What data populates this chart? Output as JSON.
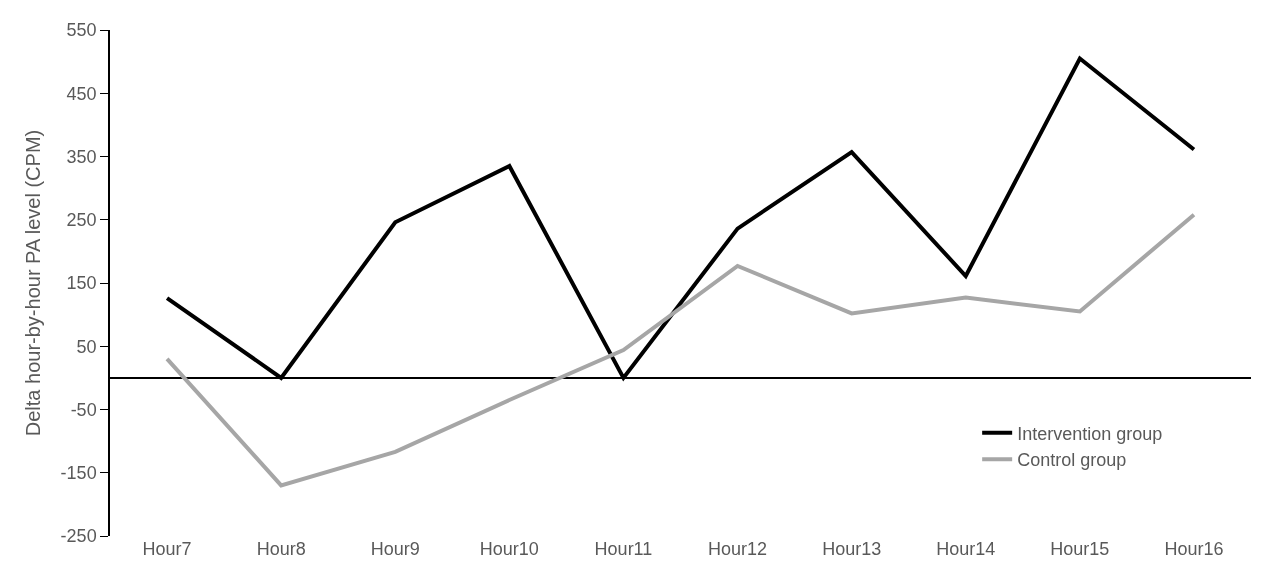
{
  "chart_data": {
    "type": "line",
    "ylabel": "Delta hour-by-hour PA level (CPM)",
    "categories": [
      "Hour7",
      "Hour8",
      "Hour9",
      "Hour10",
      "Hour11",
      "Hour12",
      "Hour13",
      "Hour14",
      "Hour15",
      "Hour16"
    ],
    "series": [
      {
        "name": "Intervention group",
        "color": "#000000",
        "values": [
          126,
          0,
          246,
          335,
          0,
          236,
          357,
          161,
          505,
          361
        ]
      },
      {
        "name": "Control group",
        "color": "#a6a6a6",
        "values": [
          30,
          -170,
          -117,
          -35,
          44,
          177,
          102,
          127,
          105,
          258
        ]
      }
    ],
    "ylim": [
      -250,
      550
    ],
    "yticks": [
      -250,
      -150,
      -50,
      50,
      150,
      250,
      350,
      450,
      550
    ],
    "legend": "right",
    "marker": "none",
    "line_style": "solid"
  }
}
